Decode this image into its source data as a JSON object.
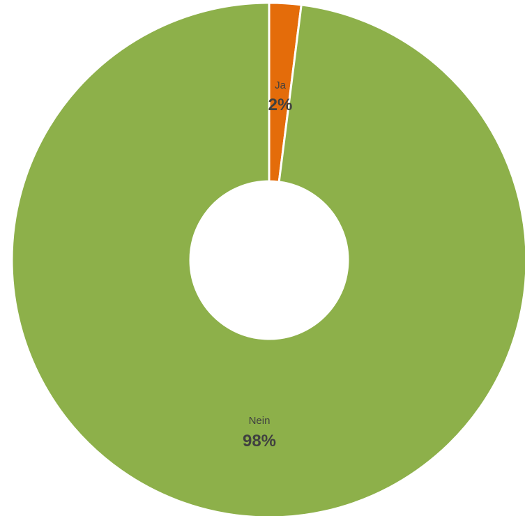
{
  "chart_data": {
    "type": "pie",
    "variant": "donut",
    "slices": [
      {
        "label": "Ja",
        "value": 2,
        "value_label": "2%",
        "color": "#E46C0A"
      },
      {
        "label": "Nein",
        "value": 98,
        "value_label": "98%",
        "color": "#8DB04A"
      }
    ],
    "legend": "none",
    "slice_border_color": "#ffffff"
  }
}
